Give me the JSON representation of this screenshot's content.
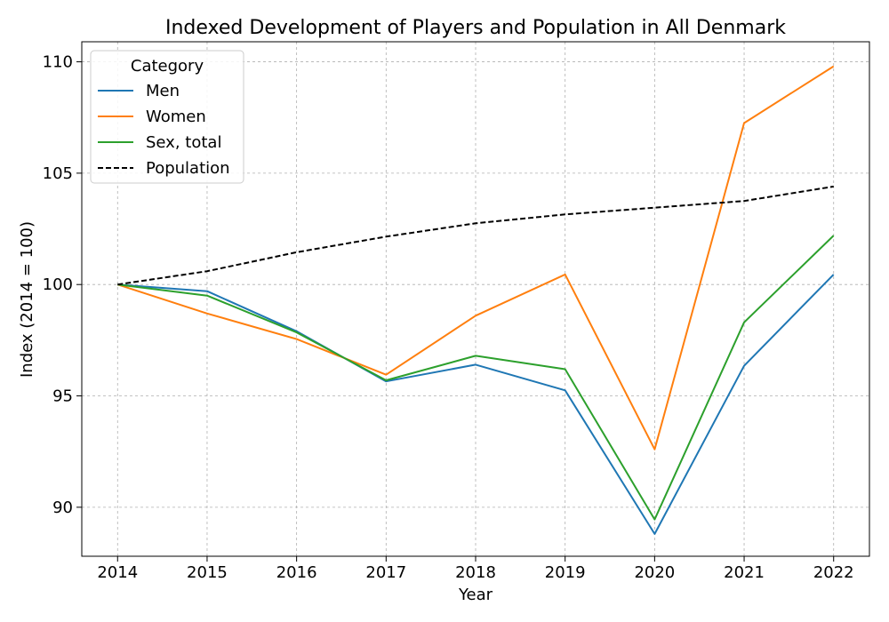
{
  "chart_data": {
    "type": "line",
    "title": "Indexed Development of Players and Population in All Denmark",
    "xlabel": "Year",
    "ylabel": "Index (2014 = 100)",
    "x": [
      2014,
      2015,
      2016,
      2017,
      2018,
      2019,
      2020,
      2021,
      2022
    ],
    "xticks": [
      "2014",
      "2015",
      "2016",
      "2017",
      "2018",
      "2019",
      "2020",
      "2021",
      "2022"
    ],
    "yticks": [
      90,
      95,
      100,
      105,
      110
    ],
    "ytick_labels": [
      "90",
      "95",
      "100",
      "105",
      "110"
    ],
    "ylim": [
      87.8,
      110.9
    ],
    "xlim": [
      2013.6,
      2022.4
    ],
    "grid": true,
    "legend": {
      "title": "Category",
      "placement": "top-left"
    },
    "series": [
      {
        "name": "Men",
        "color": "#1f77b4",
        "dash": "solid",
        "values": [
          100,
          99.7,
          97.9,
          95.65,
          96.4,
          95.25,
          88.8,
          96.35,
          100.45
        ]
      },
      {
        "name": "Women",
        "color": "#ff7f0e",
        "dash": "solid",
        "values": [
          100,
          98.7,
          97.55,
          95.95,
          98.6,
          100.45,
          92.6,
          107.25,
          109.8
        ]
      },
      {
        "name": "Sex, total",
        "color": "#2ca02c",
        "dash": "solid",
        "values": [
          100,
          99.5,
          97.85,
          95.7,
          96.8,
          96.2,
          89.45,
          98.3,
          102.2
        ]
      },
      {
        "name": "Population",
        "color": "#000000",
        "dash": "dashed",
        "values": [
          100,
          100.6,
          101.45,
          102.15,
          102.75,
          103.15,
          103.45,
          103.75,
          104.4
        ]
      }
    ]
  }
}
